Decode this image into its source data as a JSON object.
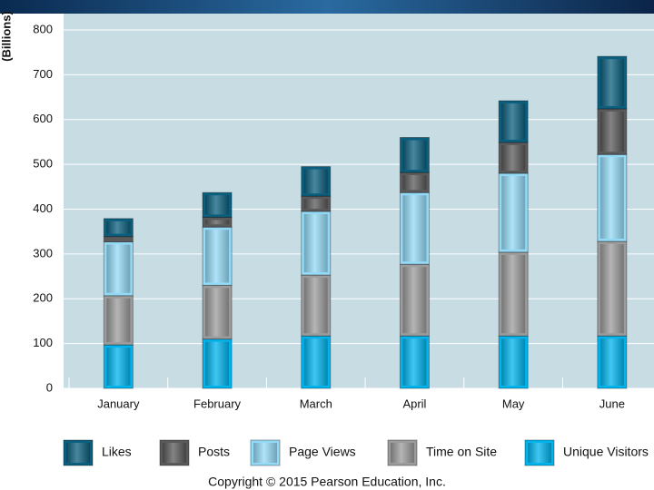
{
  "chart_data": {
    "type": "stacked_bar",
    "y_label": "(Billions)",
    "categories": [
      "January",
      "February",
      "March",
      "April",
      "May",
      "June"
    ],
    "series": [
      {
        "name": "Likes",
        "color": "#0b5f7e",
        "values": [
          40,
          55,
          66,
          78,
          93,
          117
        ]
      },
      {
        "name": "Posts",
        "color": "#5a5a5a",
        "values": [
          12,
          22,
          34,
          45,
          69,
          102
        ]
      },
      {
        "name": "Page Views",
        "color": "#94daf6",
        "values": [
          120,
          130,
          142,
          160,
          176,
          194
        ]
      },
      {
        "name": "Time on Site",
        "color": "#9c9c9c",
        "values": [
          110,
          120,
          136,
          160,
          187,
          211
        ]
      },
      {
        "name": "Unique Visitors",
        "color": "#00b4ee",
        "values": [
          97,
          110,
          117,
          117,
          117,
          117
        ]
      }
    ],
    "ylim": [
      0,
      800
    ],
    "yticks": [
      0,
      100,
      200,
      300,
      400,
      500,
      600,
      700,
      800
    ],
    "grid": true,
    "copyright": "Copyright © 2015 Pearson Education, Inc."
  }
}
